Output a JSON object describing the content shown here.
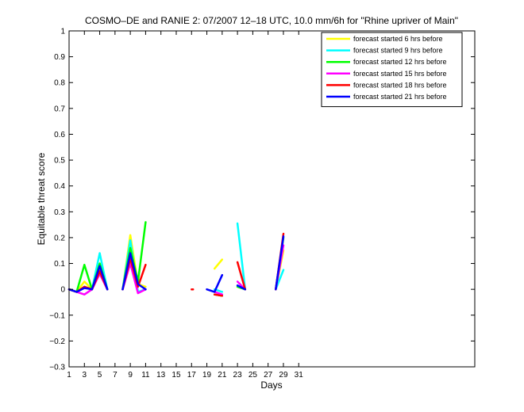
{
  "chart_data": {
    "type": "line",
    "title": "COSMO–DE and RANIE 2: 07/2007 12–18 UTC, 10.0 mm/6h for \"Rhine upriver of Main\"",
    "xlabel": "Days",
    "ylabel": "Equitable threat score",
    "xlim": [
      1,
      54
    ],
    "ylim": [
      -0.3,
      1
    ],
    "xticks": [
      1,
      3,
      5,
      7,
      9,
      11,
      13,
      15,
      17,
      19,
      21,
      23,
      25,
      27,
      29,
      31
    ],
    "xtick_labels": [
      "1",
      "3",
      "5",
      "7",
      "9",
      "11",
      "13",
      "15",
      "17",
      "19",
      "21",
      "23",
      "25",
      "27",
      "29",
      "31"
    ],
    "yticks": [
      -0.3,
      -0.2,
      -0.1,
      0,
      0.1,
      0.2,
      0.3,
      0.4,
      0.5,
      0.6,
      0.7,
      0.8,
      0.9,
      1
    ],
    "ytick_labels": [
      "−0.3",
      "−0.2",
      "−0.1",
      "0",
      "0.1",
      "0.2",
      "0.3",
      "0.4",
      "0.5",
      "0.6",
      "0.7",
      "0.8",
      "0.9",
      "1"
    ],
    "legend_position": "top-right",
    "series": [
      {
        "name": "forecast started 6 hrs before",
        "color": "#ffff00",
        "segments": [
          [
            [
              1,
              0
            ],
            [
              2,
              -0.01
            ],
            [
              3,
              0.03
            ],
            [
              4,
              0
            ],
            [
              5,
              0.08
            ],
            [
              6,
              0
            ]
          ],
          [
            [
              8,
              0
            ],
            [
              9,
              0.21
            ],
            [
              10,
              0.02
            ],
            [
              11,
              0.01
            ]
          ],
          [
            [
              20,
              0.08
            ],
            [
              21,
              0.115
            ]
          ],
          [
            [
              23,
              0.01
            ],
            [
              24,
              0
            ]
          ],
          [
            [
              28,
              0
            ],
            [
              29,
              0.15
            ]
          ]
        ]
      },
      {
        "name": "forecast started 9 hrs before",
        "color": "#00ffff",
        "segments": [
          [
            [
              1,
              0
            ],
            [
              2,
              -0.01
            ],
            [
              3,
              0.01
            ],
            [
              4,
              0
            ],
            [
              5,
              0.14
            ],
            [
              6,
              0
            ]
          ],
          [
            [
              8,
              0
            ],
            [
              9,
              0.19
            ],
            [
              10,
              -0.01
            ],
            [
              11,
              0
            ]
          ],
          [
            [
              20,
              0
            ],
            [
              21,
              -0.01
            ]
          ],
          [
            [
              23,
              0.255
            ],
            [
              24,
              0
            ]
          ],
          [
            [
              28,
              0
            ],
            [
              29,
              0.075
            ]
          ]
        ]
      },
      {
        "name": "forecast started 12 hrs before",
        "color": "#00ff00",
        "segments": [
          [
            [
              1,
              0
            ],
            [
              2,
              -0.01
            ],
            [
              3,
              0.095
            ],
            [
              4,
              0
            ],
            [
              5,
              0.1
            ],
            [
              6,
              0
            ]
          ],
          [
            [
              8,
              0
            ],
            [
              9,
              0.16
            ],
            [
              10,
              0.03
            ],
            [
              11,
              0.26
            ]
          ],
          [
            [
              20,
              -0.02
            ],
            [
              21,
              -0.025
            ]
          ],
          [
            [
              23,
              0.01
            ],
            [
              24,
              0
            ]
          ],
          [
            [
              28,
              0
            ],
            [
              29,
              0.2
            ]
          ]
        ]
      },
      {
        "name": "forecast started 15 hrs before",
        "color": "#ff00ff",
        "segments": [
          [
            [
              1,
              0
            ],
            [
              2,
              -0.01
            ],
            [
              3,
              -0.02
            ],
            [
              4,
              0
            ],
            [
              5,
              0.06
            ],
            [
              6,
              0
            ]
          ],
          [
            [
              8,
              0
            ],
            [
              9,
              0.1
            ],
            [
              10,
              -0.015
            ],
            [
              11,
              0
            ]
          ],
          [
            [
              20,
              -0.01
            ],
            [
              21,
              -0.02
            ]
          ],
          [
            [
              23,
              0.03
            ],
            [
              24,
              0
            ]
          ],
          [
            [
              28,
              0
            ],
            [
              29,
              0.17
            ]
          ]
        ]
      },
      {
        "name": "forecast started 18 hrs before",
        "color": "#ff0000",
        "segments": [
          [
            [
              1,
              0
            ],
            [
              2,
              -0.01
            ],
            [
              3,
              0.01
            ],
            [
              4,
              0
            ],
            [
              5,
              0.07
            ],
            [
              6,
              0
            ]
          ],
          [
            [
              8,
              0
            ],
            [
              9,
              0.12
            ],
            [
              10,
              0.01
            ],
            [
              11,
              0.095
            ]
          ],
          [
            [
              17,
              0
            ],
            [
              17.2,
              0
            ]
          ],
          [
            [
              20,
              -0.02
            ],
            [
              21,
              -0.025
            ]
          ],
          [
            [
              23,
              0.105
            ],
            [
              24,
              0
            ]
          ],
          [
            [
              28,
              0
            ],
            [
              29,
              0.215
            ]
          ]
        ]
      },
      {
        "name": "forecast started 21 hrs before",
        "color": "#0000ff",
        "segments": [
          [
            [
              1,
              0
            ],
            [
              2,
              -0.01
            ],
            [
              3,
              0.005
            ],
            [
              4,
              0
            ],
            [
              5,
              0.09
            ],
            [
              6,
              0
            ]
          ],
          [
            [
              8,
              0
            ],
            [
              9,
              0.14
            ],
            [
              10,
              0.02
            ],
            [
              11,
              0
            ]
          ],
          [
            [
              19,
              0
            ],
            [
              20,
              -0.01
            ],
            [
              21,
              0.055
            ]
          ],
          [
            [
              23,
              0.015
            ],
            [
              24,
              0
            ]
          ],
          [
            [
              28,
              0
            ],
            [
              29,
              0.205
            ]
          ]
        ]
      }
    ]
  }
}
